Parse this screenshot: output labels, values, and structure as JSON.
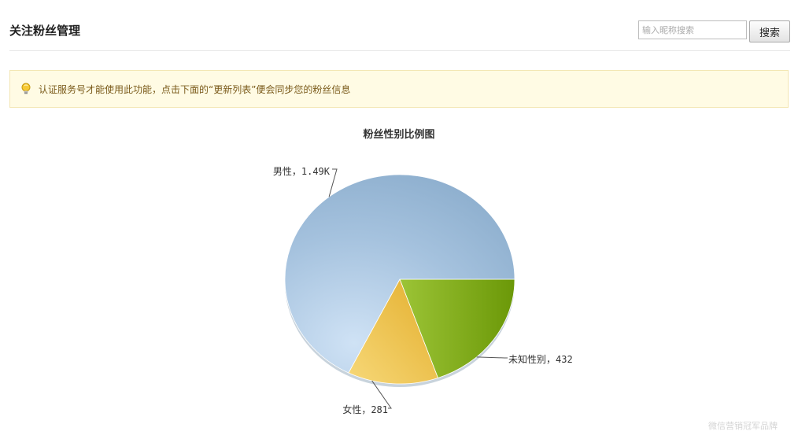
{
  "header": {
    "title": "关注粉丝管理",
    "search_placeholder": "输入昵称搜索",
    "search_button": "搜索"
  },
  "notice": {
    "icon": "lightbulb-icon",
    "text": "认证服务号才能使用此功能，点击下面的“更新列表”便会同步您的粉丝信息"
  },
  "chart_data": {
    "type": "pie",
    "title": "粉丝性别比例图",
    "slices": [
      {
        "label": "男性，1.49K",
        "value": 1490,
        "color": "#94b5d3"
      },
      {
        "label": "未知性别，432",
        "value": 432,
        "color": "#7aa312"
      },
      {
        "label": "女性，281",
        "value": 281,
        "color": "#efc24e"
      }
    ],
    "start": "3 o'clock",
    "direction": "clockwise starting with 未知性别"
  },
  "watermark": "微信营销冠军品牌"
}
